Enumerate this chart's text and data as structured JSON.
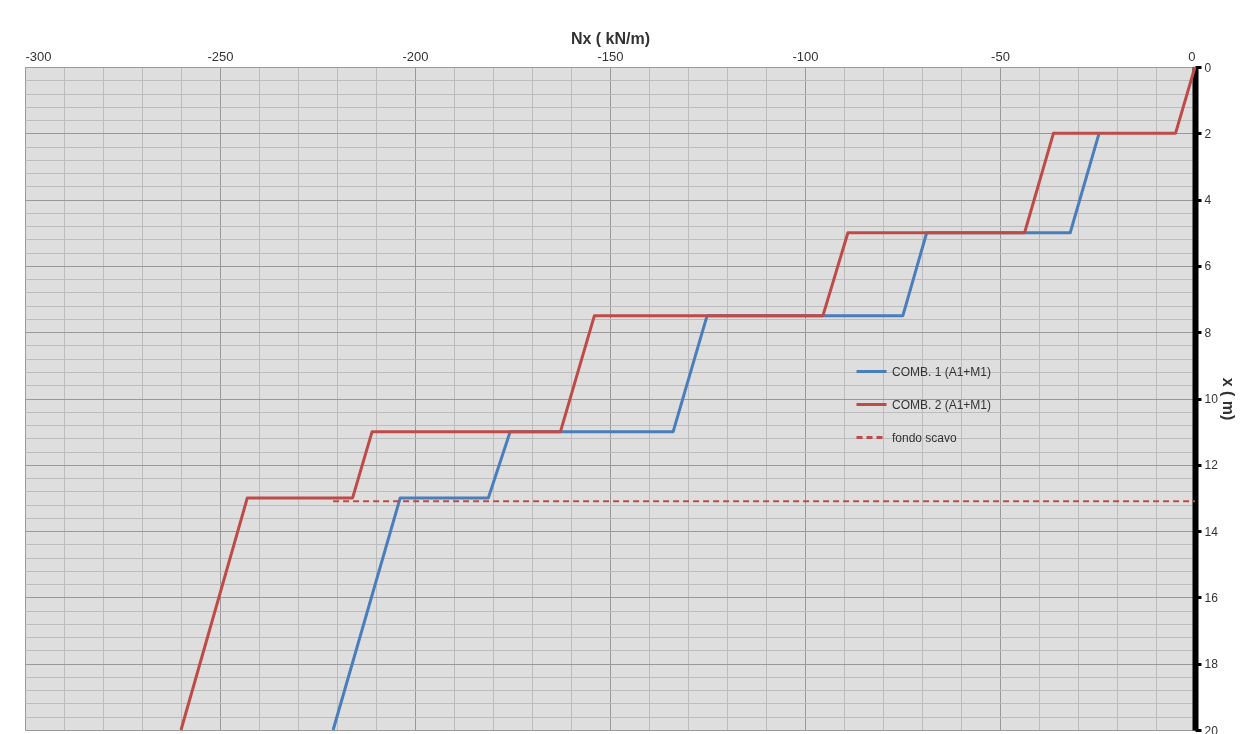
{
  "chart_data": {
    "type": "line",
    "xlabel": "Nx ( kN/m)",
    "ylabel": "x ( m)",
    "xlim": [
      -300,
      0
    ],
    "xticks": [
      -300,
      {
        "value": -290,
        "label": null
      },
      {
        "value": -280,
        "label": null
      },
      {
        "value": -270,
        "label": null
      },
      {
        "value": -260,
        "label": null
      },
      -250,
      {
        "value": -240,
        "label": null
      },
      {
        "value": -230,
        "label": null
      },
      {
        "value": -220,
        "label": null
      },
      {
        "value": -210,
        "label": null
      },
      -200,
      {
        "value": -190,
        "label": null
      },
      {
        "value": -180,
        "label": null
      },
      {
        "value": -170,
        "label": null
      },
      {
        "value": -160,
        "label": null
      },
      -150,
      {
        "value": -140,
        "label": null
      },
      {
        "value": -130,
        "label": null
      },
      {
        "value": -120,
        "label": null
      },
      {
        "value": -110,
        "label": null
      },
      -100,
      {
        "value": -90,
        "label": null
      },
      {
        "value": -80,
        "label": null
      },
      {
        "value": -70,
        "label": null
      },
      {
        "value": -60,
        "label": null
      },
      -50,
      {
        "value": -40,
        "label": null
      },
      {
        "value": -30,
        "label": null
      },
      {
        "value": -20,
        "label": null
      },
      {
        "value": -10,
        "label": null
      },
      0
    ],
    "ylim": [
      20,
      0
    ],
    "yticks": [
      0,
      {
        "value": 0.4,
        "label": null
      },
      {
        "value": 0.8,
        "label": null
      },
      {
        "value": 1.2,
        "label": null
      },
      {
        "value": 1.6,
        "label": null
      },
      2,
      {
        "value": 2.4,
        "label": null
      },
      {
        "value": 2.8,
        "label": null
      },
      {
        "value": 3.2,
        "label": null
      },
      {
        "value": 3.6,
        "label": null
      },
      4,
      {
        "value": 4.4,
        "label": null
      },
      {
        "value": 4.8,
        "label": null
      },
      {
        "value": 5.2,
        "label": null
      },
      {
        "value": 5.6,
        "label": null
      },
      6,
      {
        "value": 6.4,
        "label": null
      },
      {
        "value": 6.8,
        "label": null
      },
      {
        "value": 7.2,
        "label": null
      },
      {
        "value": 7.6,
        "label": null
      },
      8,
      {
        "value": 8.4,
        "label": null
      },
      {
        "value": 8.8,
        "label": null
      },
      {
        "value": 9.2,
        "label": null
      },
      {
        "value": 9.6,
        "label": null
      },
      10,
      {
        "value": 10.4,
        "label": null
      },
      {
        "value": 10.8,
        "label": null
      },
      {
        "value": 11.2,
        "label": null
      },
      {
        "value": 11.6,
        "label": null
      },
      12,
      {
        "value": 12.4,
        "label": null
      },
      {
        "value": 12.8,
        "label": null
      },
      {
        "value": 13.2,
        "label": null
      },
      {
        "value": 13.6,
        "label": null
      },
      14,
      {
        "value": 14.4,
        "label": null
      },
      {
        "value": 14.8,
        "label": null
      },
      {
        "value": 15.2,
        "label": null
      },
      {
        "value": 15.6,
        "label": null
      },
      16,
      {
        "value": 16.4,
        "label": null
      },
      {
        "value": 16.8,
        "label": null
      },
      {
        "value": 17.2,
        "label": null
      },
      {
        "value": 17.6,
        "label": null
      },
      18,
      {
        "value": 18.4,
        "label": null
      },
      {
        "value": 18.8,
        "label": null
      },
      {
        "value": 19.2,
        "label": null
      },
      {
        "value": 19.6,
        "label": null
      },
      20
    ],
    "grid": true,
    "legend": "right",
    "series": [
      {
        "name": "COMB. 1 (A1+M1)",
        "color": "#4a7ebb",
        "x": [
          -24.6,
          -32,
          -68.8,
          -74.9,
          -125.1,
          -133.8,
          -175.6,
          -181.2,
          -203.8,
          -221
        ],
        "values": [
          2,
          5,
          5,
          7.5,
          7.5,
          11,
          11,
          13,
          13,
          20
        ]
      },
      {
        "name": "COMB. 2 (A1+M1)",
        "color": "#be4b48",
        "x": [
          0,
          -5,
          -36.3,
          -43.7,
          -89,
          -95.4,
          -154,
          -162.7,
          -211,
          -216,
          -243,
          -260
        ],
        "values": [
          0,
          2,
          2,
          5,
          5,
          7.5,
          7.5,
          11,
          11,
          13,
          13,
          20
        ]
      },
      {
        "name": "fondo scavo",
        "color": "#be4b48",
        "line_style": "dashed",
        "x": [
          -221,
          0
        ],
        "values": [
          13.1,
          13.1
        ]
      }
    ]
  }
}
